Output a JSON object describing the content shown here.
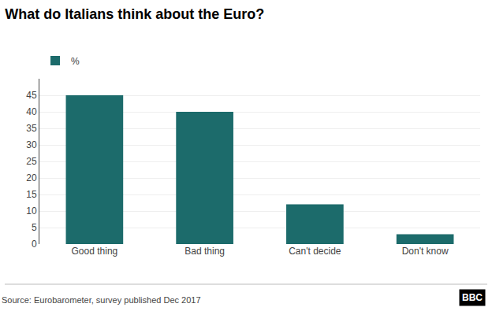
{
  "chart_data": {
    "type": "bar",
    "title": "What do Italians think about the Euro?",
    "categories": [
      "Good thing",
      "Bad thing",
      "Can't decide",
      "Don't know"
    ],
    "series": [
      {
        "name": "%",
        "color": "#1c6b6b",
        "values": [
          45,
          40,
          12,
          3
        ]
      }
    ],
    "ylim": [
      0,
      50
    ],
    "yticks": [
      0,
      5,
      10,
      15,
      20,
      25,
      30,
      35,
      40,
      45
    ],
    "grid": true,
    "legend": "upper left",
    "annotations": [
      "Source: Eurobarometer, survey published Dec 2017",
      "BBC"
    ]
  }
}
